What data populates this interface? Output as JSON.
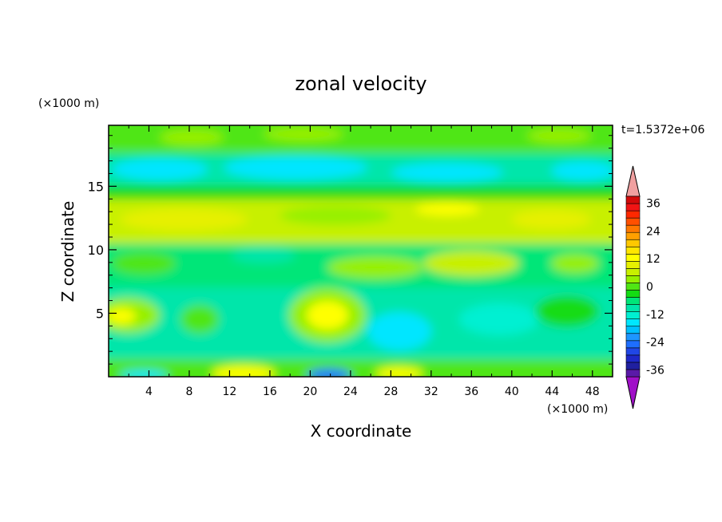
{
  "chart_data": {
    "type": "heatmap",
    "title": "zonal velocity",
    "xlabel": "X coordinate",
    "ylabel": "Z coordinate",
    "x_unit": "(×1000 m)",
    "y_unit": "(×1000 m)",
    "time_label": "t=1.5372e+06",
    "xlim": [
      0,
      50
    ],
    "ylim": [
      0,
      19.8
    ],
    "x_ticks": [
      4,
      8,
      12,
      16,
      20,
      24,
      28,
      32,
      36,
      40,
      44,
      48
    ],
    "y_ticks": [
      5,
      10,
      15
    ],
    "colorbar": {
      "levels": [
        -42,
        -39,
        -36,
        -33,
        -30,
        -27,
        -24,
        -21,
        -18,
        -15,
        -12,
        -9,
        -6,
        -3,
        0,
        3,
        6,
        9,
        12,
        15,
        18,
        21,
        24,
        27,
        30,
        33,
        36,
        39,
        42
      ],
      "tick_labels": [
        "36",
        "24",
        "12",
        "0",
        "-12",
        "-24",
        "-36"
      ],
      "tick_values": [
        36,
        24,
        12,
        0,
        -12,
        -24,
        -36
      ],
      "colors": [
        "#a010c8",
        "#5a1aa8",
        "#2020a0",
        "#1e28c8",
        "#2046e6",
        "#1e6eff",
        "#1e96ff",
        "#00c0ff",
        "#00e6ff",
        "#00f0d2",
        "#00e6aa",
        "#00e678",
        "#14dc14",
        "#50e614",
        "#96f000",
        "#c8f000",
        "#e6f000",
        "#ffff00",
        "#ffe600",
        "#ffc800",
        "#ffa000",
        "#ff7800",
        "#ff5000",
        "#ff2800",
        "#f01414",
        "#d20a0a",
        "#f0a0a0"
      ]
    },
    "field_description_regions": [
      {
        "x": [
          0,
          50
        ],
        "y": [
          17.5,
          19.8
        ],
        "value": 6
      },
      {
        "x": [
          0,
          50
        ],
        "y": [
          14.5,
          17.5
        ],
        "value": -9
      },
      {
        "x": [
          0,
          50
        ],
        "y": [
          10.5,
          14.5
        ],
        "value": 9
      },
      {
        "x": [
          0,
          50
        ],
        "y": [
          6.5,
          10.5
        ],
        "value": -3
      },
      {
        "x": [
          0,
          50
        ],
        "y": [
          0,
          6.5
        ],
        "value": -6
      }
    ]
  }
}
